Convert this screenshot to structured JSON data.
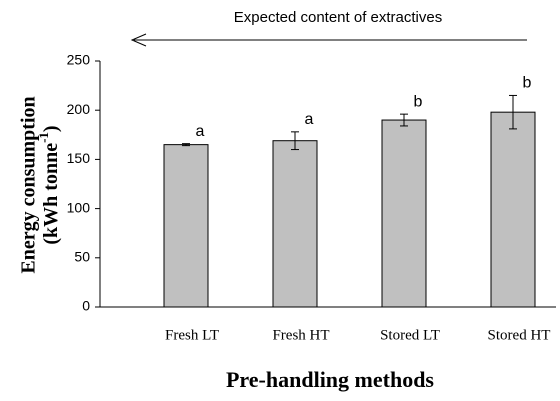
{
  "chart_data": {
    "type": "bar",
    "title": "Expected content of extractives",
    "y_label": [
      "Energy consumption",
      "(kWh  tonne",
      "-1",
      ")"
    ],
    "x_label": "Pre-handling methods",
    "categories": [
      "Fresh LT",
      "Fresh HT",
      "Stored LT",
      "Stored HT"
    ],
    "values": [
      165,
      169,
      190,
      198
    ],
    "errors": [
      1,
      9,
      6,
      17
    ],
    "annotations": [
      "a",
      "a",
      "b",
      "b"
    ],
    "color": "#c0c0c0",
    "ylim": [
      0,
      250
    ],
    "yticks": [
      0,
      50,
      100,
      150,
      200,
      250
    ],
    "grid": false
  }
}
